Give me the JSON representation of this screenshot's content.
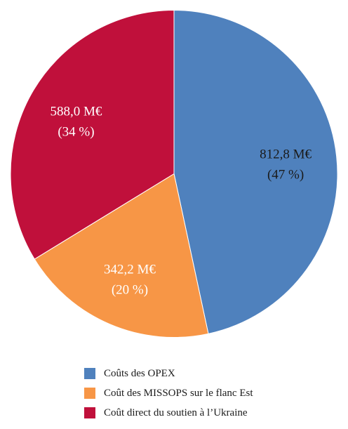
{
  "chart_data": {
    "type": "pie",
    "title": "",
    "start": "12 o'clock, clockwise",
    "legend_position": "bottom",
    "slices": [
      {
        "name": "Coûts des OPEX",
        "value": 812.8,
        "value_label": "812,8 M€",
        "percent_label": "(47 %)",
        "color": "#4f81bd",
        "label_color": "#1a1a1a"
      },
      {
        "name": "Coût des MISSOPS sur le flanc Est",
        "value": 342.2,
        "value_label": "342,2 M€",
        "percent_label": "(20 %)",
        "color": "#f79646",
        "label_color": "#ffffff"
      },
      {
        "name": "Coût direct du soutien à l’Ukraine",
        "value": 588.0,
        "value_label": "588,0 M€",
        "percent_label": "(34 %)",
        "color": "#c0103b",
        "label_color": "#ffffff"
      }
    ]
  }
}
